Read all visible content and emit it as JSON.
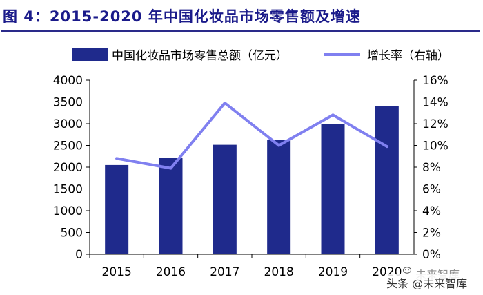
{
  "title": "图 4：2015-2020 年中国化妆品市场零售额及增速",
  "colors": {
    "title": "#1a1a8a",
    "rule": "#2a2a8a",
    "bar": "#1f2a8c",
    "line": "#8080f0",
    "axis": "#000000"
  },
  "chart_data": {
    "type": "bar",
    "categories": [
      "2015",
      "2016",
      "2017",
      "2018",
      "2019",
      "2020"
    ],
    "series": [
      {
        "name": "中国化妆品市场零售总额（亿元",
        "type": "bar",
        "axis": "left",
        "values": [
          2049,
          2222,
          2514,
          2619,
          2992,
          3400
        ]
      },
      {
        "name": "增长率（右轴",
        "type": "line",
        "axis": "right",
        "values": [
          8.8,
          7.9,
          13.9,
          10.0,
          12.8,
          9.9
        ]
      }
    ],
    "y_left": {
      "ylim": [
        0,
        4000
      ],
      "ticks": [
        "0",
        "500",
        "1000",
        "1500",
        "2000",
        "2500",
        "3000",
        "3500",
        "4000"
      ]
    },
    "y_right": {
      "ylim": [
        0,
        16
      ],
      "ticks": [
        "0%",
        "2%",
        "4%",
        "6%",
        "8%",
        "10%",
        "12%",
        "14%",
        "16%"
      ]
    },
    "legend_position": "top",
    "grid": false
  },
  "watermark": {
    "top_text": "未来智库",
    "bottom_text": "头条 @未来智库"
  }
}
